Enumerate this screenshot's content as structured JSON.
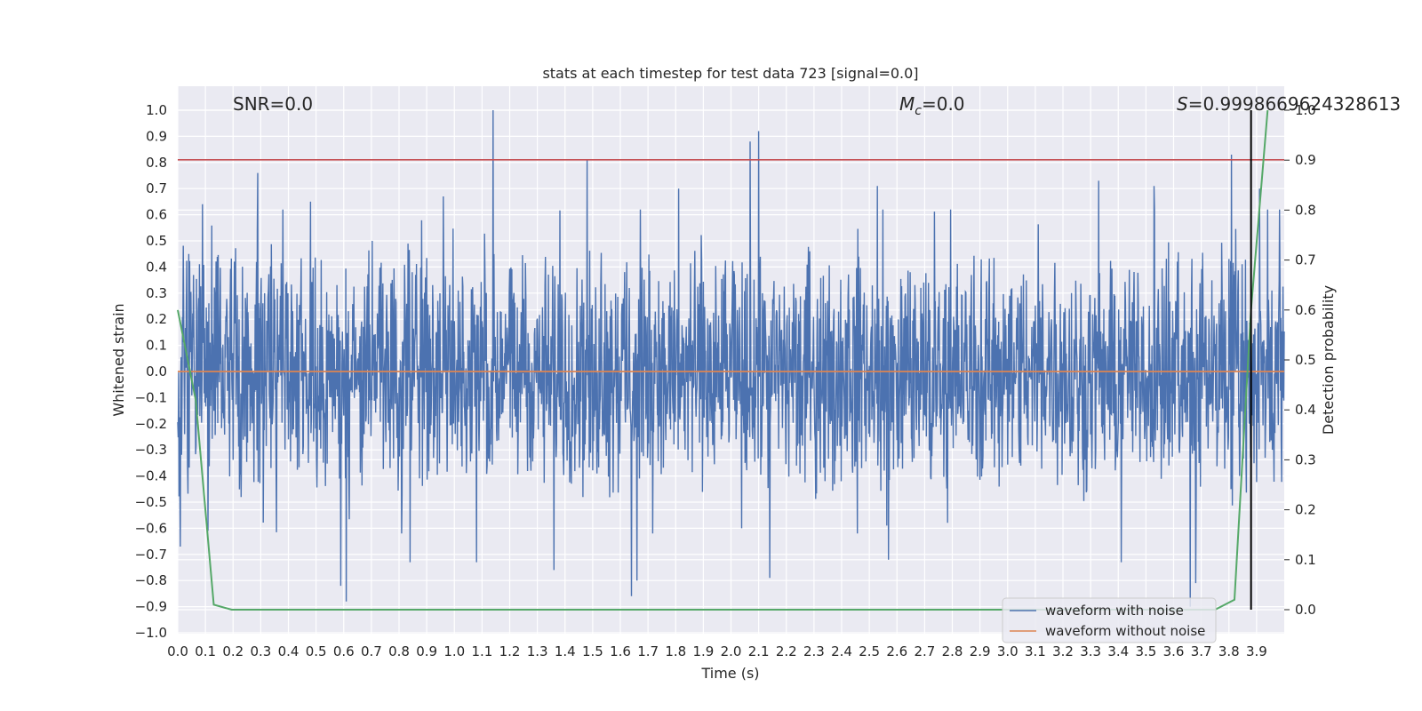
{
  "chart_data": {
    "type": "line",
    "title": "stats at each timestep for test data 723 [signal=0.0]",
    "xlabel": "Time (s)",
    "ylabel": "Whitened strain",
    "y2label": "Detection probability",
    "xlim": [
      0.0,
      4.0
    ],
    "ylim": [
      -1.0,
      1.0
    ],
    "y2lim": [
      -0.05,
      1.0
    ],
    "x_ticks": [
      "0.0",
      "0.1",
      "0.2",
      "0.3",
      "0.4",
      "0.5",
      "0.6",
      "0.7",
      "0.8",
      "0.9",
      "1.0",
      "1.1",
      "1.2",
      "1.3",
      "1.4",
      "1.5",
      "1.6",
      "1.7",
      "1.8",
      "1.9",
      "2.0",
      "2.1",
      "2.2",
      "2.3",
      "2.4",
      "2.5",
      "2.6",
      "2.7",
      "2.8",
      "2.9",
      "3.0",
      "3.1",
      "3.2",
      "3.3",
      "3.4",
      "3.5",
      "3.6",
      "3.7",
      "3.8",
      "3.9"
    ],
    "y_ticks": [
      "1.0",
      "0.9",
      "0.8",
      "0.7",
      "0.6",
      "0.5",
      "0.4",
      "0.3",
      "0.2",
      "0.1",
      "0.0",
      "−0.1",
      "−0.2",
      "−0.3",
      "−0.4",
      "−0.5",
      "−0.6",
      "−0.7",
      "−0.8",
      "−0.9",
      "−1.0"
    ],
    "y2_ticks": [
      "1.0",
      "0.9",
      "0.8",
      "0.7",
      "0.6",
      "0.5",
      "0.4",
      "0.3",
      "0.2",
      "0.1",
      "0.0"
    ],
    "grid": true,
    "legend_position": "bottom-right",
    "annotations": {
      "snr": "SNR=0.0",
      "mc_symbol": "M",
      "mc_sub": "c",
      "mc_value": "=0.0",
      "s_symbol": "S",
      "s_value": "=0.9998669624328613"
    },
    "threshold_y": 0.81,
    "marker_x": 3.88,
    "series": [
      {
        "name": "waveform with noise",
        "color": "#4c72b0",
        "peaks": [
          {
            "x": 0.04,
            "y": 0.45
          },
          {
            "x": 0.09,
            "y": 0.64
          },
          {
            "x": 0.29,
            "y": 0.76
          },
          {
            "x": 0.38,
            "y": 0.62
          },
          {
            "x": 0.48,
            "y": 0.65
          },
          {
            "x": 0.96,
            "y": 0.67
          },
          {
            "x": 1.14,
            "y": 1.0
          },
          {
            "x": 1.48,
            "y": 0.81
          },
          {
            "x": 1.81,
            "y": 0.7
          },
          {
            "x": 2.07,
            "y": 0.88
          },
          {
            "x": 2.1,
            "y": 0.92
          },
          {
            "x": 2.53,
            "y": 0.71
          },
          {
            "x": 3.33,
            "y": 0.73
          },
          {
            "x": 3.53,
            "y": 0.71
          },
          {
            "x": 3.81,
            "y": 0.83
          },
          {
            "x": 3.91,
            "y": 0.7
          }
        ],
        "troughs": [
          {
            "x": 0.01,
            "y": -0.67
          },
          {
            "x": 0.11,
            "y": -0.61
          },
          {
            "x": 0.59,
            "y": -0.82
          },
          {
            "x": 0.61,
            "y": -0.88
          },
          {
            "x": 0.84,
            "y": -0.73
          },
          {
            "x": 1.08,
            "y": -0.73
          },
          {
            "x": 1.36,
            "y": -0.76
          },
          {
            "x": 1.64,
            "y": -0.86
          },
          {
            "x": 1.66,
            "y": -0.8
          },
          {
            "x": 2.14,
            "y": -0.79
          },
          {
            "x": 2.57,
            "y": -0.72
          },
          {
            "x": 3.41,
            "y": -0.73
          },
          {
            "x": 3.66,
            "y": -0.9
          },
          {
            "x": 3.68,
            "y": -0.81
          }
        ]
      },
      {
        "name": "waveform without noise",
        "color": "#dd8452",
        "x": [
          0.0,
          4.0
        ],
        "y": [
          0.0,
          0.0
        ]
      },
      {
        "name": "",
        "color": "#55a868",
        "axis": "right",
        "x": [
          0.0,
          0.065,
          0.13,
          0.195,
          3.75,
          3.82,
          3.88,
          3.94
        ],
        "y": [
          0.6,
          0.42,
          0.01,
          0.0,
          0.0,
          0.02,
          0.6,
          1.0
        ]
      }
    ]
  }
}
